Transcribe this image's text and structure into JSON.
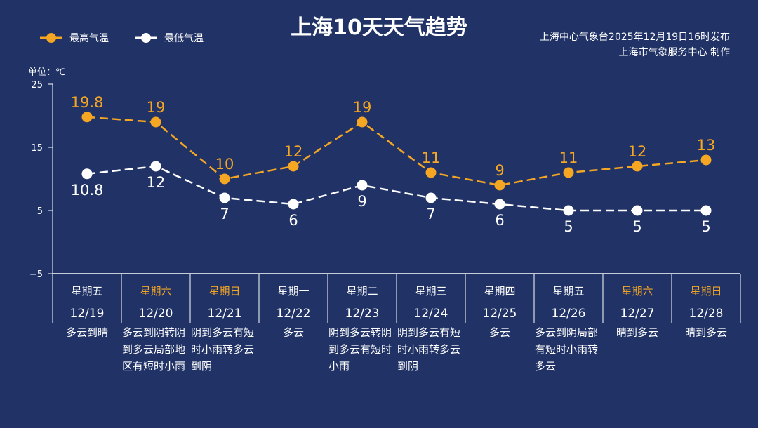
{
  "title": "上海10天天气趋势",
  "source_line1": "上海中心气象台2025年12月19日16时发布",
  "source_line2": "上海市气象服务中心 制作",
  "chart_data": {
    "type": "line",
    "title": "上海10天天气趋势",
    "ylabel": "单位：℃",
    "ylim": [
      -5,
      25
    ],
    "yticks": [
      "25",
      "15",
      "5",
      "−5"
    ],
    "ytick_values": [
      25,
      15,
      5,
      -5
    ],
    "categories": [
      "12/19",
      "12/20",
      "12/21",
      "12/22",
      "12/23",
      "12/24",
      "12/25",
      "12/26",
      "12/27",
      "12/28"
    ],
    "weekdays": [
      "星期五",
      "星期六",
      "星期日",
      "星期一",
      "星期二",
      "星期三",
      "星期四",
      "星期五",
      "星期六",
      "星期日"
    ],
    "weekend": [
      false,
      true,
      true,
      false,
      false,
      false,
      false,
      false,
      true,
      true
    ],
    "weather": [
      "多云到晴",
      "多云到阴转阴到多云局部地区有短时小雨",
      "阴到多云有短时小雨转多云到阴",
      "多云",
      "阴到多云转阴到多云有短时小雨",
      "阴到多云有短时小雨转多云到阴",
      "多云",
      "多云到阴局部有短时小雨转多云",
      "晴到多云",
      "晴到多云"
    ],
    "series": [
      {
        "name": "最高气温",
        "color": "#f5a623",
        "values": [
          19.8,
          19,
          10,
          12,
          19,
          11,
          9,
          11,
          12,
          13
        ],
        "labels": [
          "19.8",
          "19",
          "10",
          "12",
          "19",
          "11",
          "9",
          "11",
          "12",
          "13"
        ]
      },
      {
        "name": "最低气温",
        "color": "#ffffff",
        "values": [
          10.8,
          12,
          7,
          6,
          9,
          7,
          6,
          5,
          5,
          5
        ],
        "labels": [
          "10.8",
          "12",
          "7",
          "6",
          "9",
          "7",
          "6",
          "5",
          "5",
          "5"
        ]
      }
    ],
    "legend": "top-left"
  }
}
